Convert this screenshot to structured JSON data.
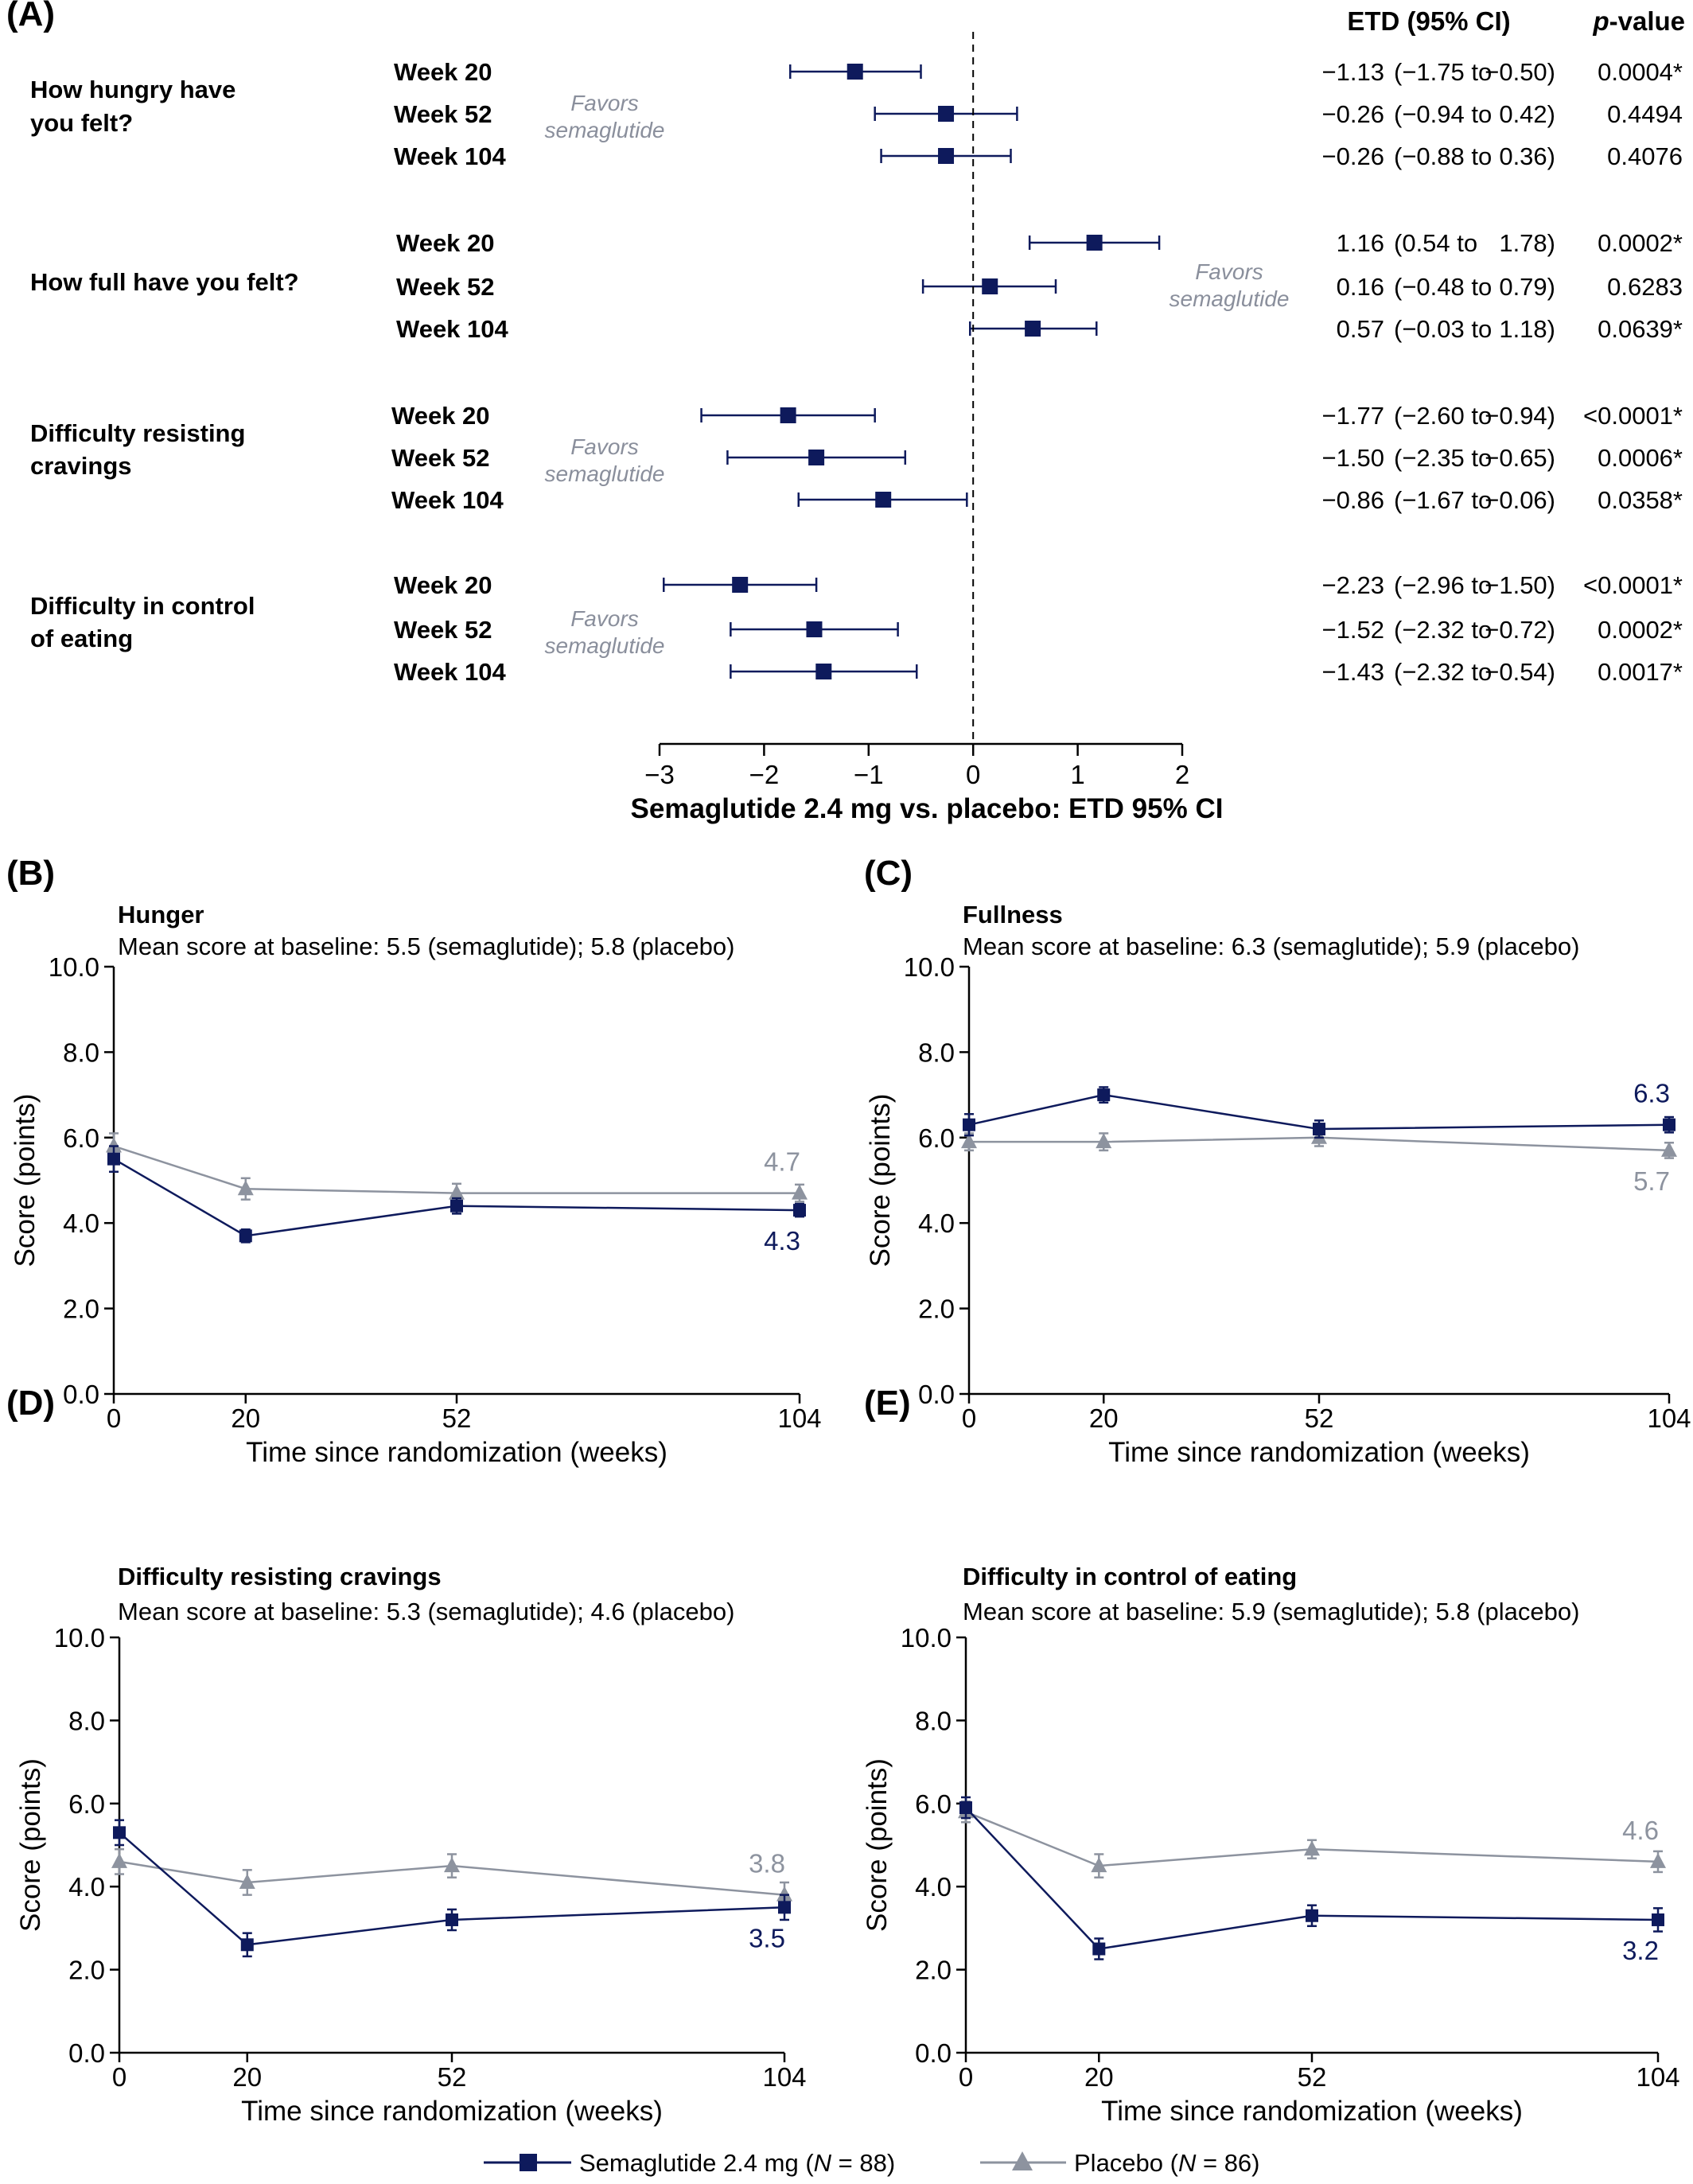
{
  "colors": {
    "semaglutide": "#0e1a5c",
    "placebo": "#8d939f",
    "favors": "#8a8f9c",
    "axis": "#000000"
  },
  "chart_data": [
    {
      "panel": "(A)",
      "type": "forest",
      "header_etd": "ETD (95% CI)",
      "header_p_italic": "p",
      "header_p_rest": "-value",
      "xlabel": "Semaglutide 2.4 mg vs. placebo: ETD 95% CI",
      "xlim": [
        -3,
        2
      ],
      "xticks": [
        "−3",
        "−2",
        "−1",
        "0",
        "1",
        "2"
      ],
      "reference_line": 0,
      "favors_text": [
        "Favors",
        "semaglutide"
      ],
      "groups": [
        {
          "question": [
            "How hungry have",
            "you felt?"
          ],
          "favors_side": "left",
          "rows": [
            {
              "label": "Week 20",
              "etd": -1.13,
              "lo": -1.75,
              "hi": -0.5,
              "etd_text": "−1.13",
              "lo_text": "(−1.75 to",
              "hi_text": "−0.50)",
              "p": "0.0004*"
            },
            {
              "label": "Week 52",
              "etd": -0.26,
              "lo": -0.94,
              "hi": 0.42,
              "etd_text": "−0.26",
              "lo_text": "(−0.94 to",
              "hi_text": "0.42)",
              "p": "0.4494"
            },
            {
              "label": "Week 104",
              "etd": -0.26,
              "lo": -0.88,
              "hi": 0.36,
              "etd_text": "−0.26",
              "lo_text": "(−0.88 to",
              "hi_text": "0.36)",
              "p": "0.4076"
            }
          ]
        },
        {
          "question": [
            "How full have you felt?"
          ],
          "favors_side": "right",
          "rows": [
            {
              "label": "Week 20",
              "etd": 1.16,
              "lo": 0.54,
              "hi": 1.78,
              "etd_text": "1.16",
              "lo_text": "(0.54 to",
              "hi_text": "1.78)",
              "p": "0.0002*"
            },
            {
              "label": "Week 52",
              "etd": 0.16,
              "lo": -0.48,
              "hi": 0.79,
              "etd_text": "0.16",
              "lo_text": "(−0.48 to",
              "hi_text": "0.79)",
              "p": "0.6283"
            },
            {
              "label": "Week 104",
              "etd": 0.57,
              "lo": -0.03,
              "hi": 1.18,
              "etd_text": "0.57",
              "lo_text": "(−0.03 to",
              "hi_text": "1.18)",
              "p": "0.0639*"
            }
          ]
        },
        {
          "question": [
            "Difficulty resisting",
            "cravings"
          ],
          "favors_side": "left",
          "rows": [
            {
              "label": "Week 20",
              "etd": -1.77,
              "lo": -2.6,
              "hi": -0.94,
              "etd_text": "−1.77",
              "lo_text": "(−2.60 to",
              "hi_text": "−0.94)",
              "p": "<0.0001*"
            },
            {
              "label": "Week 52",
              "etd": -1.5,
              "lo": -2.35,
              "hi": -0.65,
              "etd_text": "−1.50",
              "lo_text": "(−2.35 to",
              "hi_text": "−0.65)",
              "p": "0.0006*"
            },
            {
              "label": "Week 104",
              "etd": -0.86,
              "lo": -1.67,
              "hi": -0.06,
              "etd_text": "−0.86",
              "lo_text": "(−1.67 to",
              "hi_text": "−0.06)",
              "p": "0.0358*"
            }
          ]
        },
        {
          "question": [
            "Difficulty in control",
            "of eating"
          ],
          "favors_side": "left",
          "rows": [
            {
              "label": "Week 20",
              "etd": -2.23,
              "lo": -2.96,
              "hi": -1.5,
              "etd_text": "−2.23",
              "lo_text": "(−2.96 to",
              "hi_text": "−1.50)",
              "p": "<0.0001*"
            },
            {
              "label": "Week 52",
              "etd": -1.52,
              "lo": -2.32,
              "hi": -0.72,
              "etd_text": "−1.52",
              "lo_text": "(−2.32 to",
              "hi_text": "−0.72)",
              "p": "0.0002*"
            },
            {
              "label": "Week 104",
              "etd": -1.43,
              "lo": -2.32,
              "hi": -0.54,
              "etd_text": "−1.43",
              "lo_text": "(−2.32 to",
              "hi_text": "−0.54)",
              "p": "0.0017*"
            }
          ]
        }
      ]
    },
    {
      "panel": "(B)",
      "type": "line",
      "title": "Hunger",
      "subtitle": "Mean score at baseline: 5.5 (semaglutide); 5.8 (placebo)",
      "xlabel": "Time since randomization (weeks)",
      "ylabel": "Score (points)",
      "x": [
        0,
        20,
        52,
        104
      ],
      "xticks": [
        "0",
        "20",
        "52",
        "104"
      ],
      "ylim": [
        0,
        10
      ],
      "yticks": [
        "0.0",
        "2.0",
        "4.0",
        "6.0",
        "8.0",
        "10.0"
      ],
      "series": [
        {
          "key": "semaglutide",
          "values": [
            5.5,
            3.7,
            4.4,
            4.3
          ],
          "err": [
            0.3,
            0.15,
            0.18,
            0.15
          ],
          "end_label": "4.3"
        },
        {
          "key": "placebo",
          "values": [
            5.8,
            4.8,
            4.7,
            4.7
          ],
          "err": [
            0.3,
            0.25,
            0.22,
            0.2
          ],
          "end_label": "4.7"
        }
      ]
    },
    {
      "panel": "(C)",
      "type": "line",
      "title": "Fullness",
      "subtitle": "Mean score at baseline: 6.3 (semaglutide); 5.9 (placebo)",
      "xlabel": "Time since randomization (weeks)",
      "ylabel": "Score (points)",
      "x": [
        0,
        20,
        52,
        104
      ],
      "xticks": [
        "0",
        "20",
        "52",
        "104"
      ],
      "ylim": [
        0,
        10
      ],
      "yticks": [
        "0.0",
        "2.0",
        "4.0",
        "6.0",
        "8.0",
        "10.0"
      ],
      "series": [
        {
          "key": "semaglutide",
          "values": [
            6.3,
            7.0,
            6.2,
            6.3
          ],
          "err": [
            0.25,
            0.18,
            0.2,
            0.18
          ],
          "end_label": "6.3"
        },
        {
          "key": "placebo",
          "values": [
            5.9,
            5.9,
            6.0,
            5.7
          ],
          "err": [
            0.2,
            0.2,
            0.2,
            0.18
          ],
          "end_label": "5.7"
        }
      ]
    },
    {
      "panel": "(D)",
      "type": "line",
      "title": "Difficulty resisting cravings",
      "subtitle": "Mean score at baseline: 5.3 (semaglutide); 4.6 (placebo)",
      "xlabel": "Time since randomization (weeks)",
      "ylabel": "Score (points)",
      "x": [
        0,
        20,
        52,
        104
      ],
      "xticks": [
        "0",
        "20",
        "52",
        "104"
      ],
      "ylim": [
        0,
        10
      ],
      "yticks": [
        "0.0",
        "2.0",
        "4.0",
        "6.0",
        "8.0",
        "10.0"
      ],
      "series": [
        {
          "key": "semaglutide",
          "values": [
            5.3,
            2.6,
            3.2,
            3.5
          ],
          "err": [
            0.3,
            0.28,
            0.25,
            0.3
          ],
          "end_label": "3.5"
        },
        {
          "key": "placebo",
          "values": [
            4.6,
            4.1,
            4.5,
            3.8
          ],
          "err": [
            0.3,
            0.3,
            0.28,
            0.3
          ],
          "end_label": "3.8"
        }
      ]
    },
    {
      "panel": "(E)",
      "type": "line",
      "title": "Difficulty in control of eating",
      "subtitle": "Mean score at baseline: 5.9 (semaglutide); 5.8 (placebo)",
      "xlabel": "Time since randomization (weeks)",
      "ylabel": "Score (points)",
      "x": [
        0,
        20,
        52,
        104
      ],
      "xticks": [
        "0",
        "20",
        "52",
        "104"
      ],
      "ylim": [
        0,
        10
      ],
      "yticks": [
        "0.0",
        "2.0",
        "4.0",
        "6.0",
        "8.0",
        "10.0"
      ],
      "series": [
        {
          "key": "semaglutide",
          "values": [
            5.9,
            2.5,
            3.3,
            3.2
          ],
          "err": [
            0.25,
            0.25,
            0.25,
            0.28
          ],
          "end_label": "3.2"
        },
        {
          "key": "placebo",
          "values": [
            5.8,
            4.5,
            4.9,
            4.6
          ],
          "err": [
            0.25,
            0.28,
            0.22,
            0.25
          ],
          "end_label": "4.6"
        }
      ]
    }
  ],
  "legend": {
    "semaglutide": {
      "label": "Semaglutide 2.4 mg (",
      "n_italic": "N",
      "rest": " = 88)"
    },
    "placebo": {
      "label": "Placebo (",
      "n_italic": "N",
      "rest": " = 86)"
    }
  }
}
